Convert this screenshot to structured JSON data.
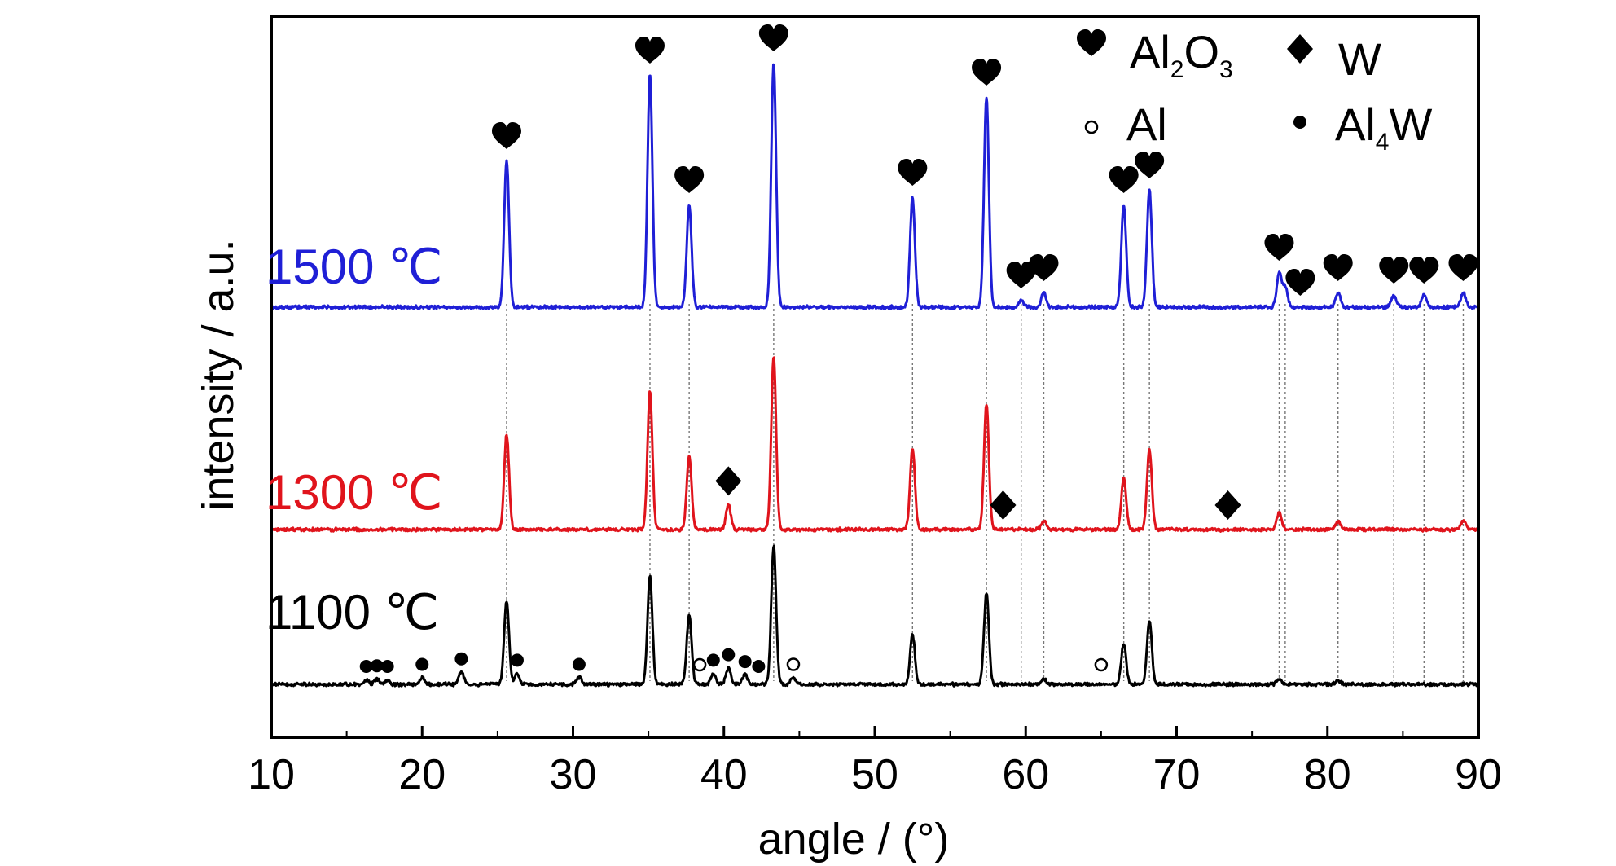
{
  "chart_data": {
    "type": "line",
    "xlabel": "angle / (°)",
    "ylabel": "intensity / a.u.",
    "xlim": [
      10,
      90
    ],
    "xticks": [
      10,
      20,
      30,
      40,
      50,
      60,
      70,
      80,
      90
    ],
    "grid": false,
    "legend_position": "top-right",
    "colors": {
      "1500": "#1f1fd6",
      "1300": "#e0141c",
      "1100": "#000000"
    },
    "legend": [
      {
        "marker": "heart",
        "label": "Al2O3",
        "main": "Al",
        "sub1": "2",
        "mid": "O",
        "sub2": "3"
      },
      {
        "marker": "diamond",
        "label": "W",
        "main": "W"
      },
      {
        "marker": "open-circle",
        "label": "Al",
        "main": "Al"
      },
      {
        "marker": "filled-circle",
        "label": "Al4W",
        "main": "Al",
        "sub1": "4",
        "mid": "W"
      }
    ],
    "reference_lines_x": [
      25.6,
      35.1,
      37.7,
      43.3,
      52.5,
      57.4,
      59.7,
      61.2,
      66.5,
      68.2,
      76.8,
      77.2,
      80.7,
      84.4,
      86.4,
      89.0
    ],
    "series": [
      {
        "name": "1500 ℃",
        "color": "#1f1fd6",
        "peaks": [
          {
            "x": 25.6,
            "y": 0.6
          },
          {
            "x": 35.1,
            "y": 0.95
          },
          {
            "x": 37.7,
            "y": 0.42
          },
          {
            "x": 43.3,
            "y": 1.0
          },
          {
            "x": 52.5,
            "y": 0.45
          },
          {
            "x": 57.4,
            "y": 0.86
          },
          {
            "x": 59.7,
            "y": 0.03
          },
          {
            "x": 61.2,
            "y": 0.06
          },
          {
            "x": 66.5,
            "y": 0.42
          },
          {
            "x": 68.2,
            "y": 0.48
          },
          {
            "x": 76.8,
            "y": 0.14
          },
          {
            "x": 77.2,
            "y": 0.08
          },
          {
            "x": 80.7,
            "y": 0.06
          },
          {
            "x": 84.4,
            "y": 0.05
          },
          {
            "x": 86.4,
            "y": 0.05
          },
          {
            "x": 89.0,
            "y": 0.06
          }
        ],
        "markers": [
          {
            "x": 25.6,
            "type": "heart"
          },
          {
            "x": 35.1,
            "type": "heart"
          },
          {
            "x": 37.7,
            "type": "heart"
          },
          {
            "x": 43.3,
            "type": "heart"
          },
          {
            "x": 52.5,
            "type": "heart"
          },
          {
            "x": 57.4,
            "type": "heart"
          },
          {
            "x": 59.7,
            "type": "heart"
          },
          {
            "x": 61.2,
            "type": "heart"
          },
          {
            "x": 66.5,
            "type": "heart"
          },
          {
            "x": 68.2,
            "type": "heart"
          },
          {
            "x": 76.8,
            "type": "heart"
          },
          {
            "x": 78.2,
            "type": "heart"
          },
          {
            "x": 80.7,
            "type": "heart"
          },
          {
            "x": 84.4,
            "type": "heart"
          },
          {
            "x": 86.4,
            "type": "heart"
          },
          {
            "x": 89.0,
            "type": "heart"
          }
        ]
      },
      {
        "name": "1300 ℃",
        "color": "#e0141c",
        "peaks": [
          {
            "x": 25.6,
            "y": 0.55
          },
          {
            "x": 35.1,
            "y": 0.8
          },
          {
            "x": 37.7,
            "y": 0.43
          },
          {
            "x": 40.3,
            "y": 0.14
          },
          {
            "x": 43.3,
            "y": 1.0
          },
          {
            "x": 52.5,
            "y": 0.47
          },
          {
            "x": 57.4,
            "y": 0.73
          },
          {
            "x": 61.2,
            "y": 0.05
          },
          {
            "x": 66.5,
            "y": 0.3
          },
          {
            "x": 68.2,
            "y": 0.46
          },
          {
            "x": 76.8,
            "y": 0.1
          },
          {
            "x": 80.7,
            "y": 0.05
          },
          {
            "x": 89.0,
            "y": 0.05
          }
        ],
        "markers": [
          {
            "x": 40.3,
            "type": "diamond"
          },
          {
            "x": 58.5,
            "type": "diamond"
          },
          {
            "x": 73.4,
            "type": "diamond"
          }
        ]
      },
      {
        "name": "1100 ℃",
        "color": "#000000",
        "peaks": [
          {
            "x": 16.3,
            "y": 0.03
          },
          {
            "x": 17.0,
            "y": 0.04
          },
          {
            "x": 17.7,
            "y": 0.03
          },
          {
            "x": 20.0,
            "y": 0.05
          },
          {
            "x": 22.6,
            "y": 0.09
          },
          {
            "x": 25.6,
            "y": 0.6
          },
          {
            "x": 26.3,
            "y": 0.08
          },
          {
            "x": 30.4,
            "y": 0.05
          },
          {
            "x": 35.1,
            "y": 0.78
          },
          {
            "x": 37.7,
            "y": 0.5
          },
          {
            "x": 39.3,
            "y": 0.08
          },
          {
            "x": 40.3,
            "y": 0.12
          },
          {
            "x": 41.4,
            "y": 0.07
          },
          {
            "x": 43.3,
            "y": 1.0
          },
          {
            "x": 44.6,
            "y": 0.05
          },
          {
            "x": 52.5,
            "y": 0.36
          },
          {
            "x": 57.4,
            "y": 0.66
          },
          {
            "x": 61.2,
            "y": 0.04
          },
          {
            "x": 66.5,
            "y": 0.3
          },
          {
            "x": 68.2,
            "y": 0.46
          },
          {
            "x": 76.8,
            "y": 0.04
          },
          {
            "x": 80.7,
            "y": 0.03
          }
        ],
        "markers": [
          {
            "x": 16.3,
            "type": "filled-circle"
          },
          {
            "x": 17.0,
            "type": "filled-circle"
          },
          {
            "x": 17.7,
            "type": "filled-circle"
          },
          {
            "x": 20.0,
            "type": "filled-circle"
          },
          {
            "x": 22.6,
            "type": "filled-circle"
          },
          {
            "x": 26.3,
            "type": "filled-circle"
          },
          {
            "x": 30.4,
            "type": "filled-circle"
          },
          {
            "x": 38.4,
            "type": "open-circle"
          },
          {
            "x": 39.3,
            "type": "filled-circle"
          },
          {
            "x": 40.3,
            "type": "filled-circle"
          },
          {
            "x": 41.4,
            "type": "filled-circle"
          },
          {
            "x": 42.3,
            "type": "filled-circle"
          },
          {
            "x": 44.6,
            "type": "open-circle"
          },
          {
            "x": 65.0,
            "type": "open-circle"
          }
        ]
      }
    ]
  }
}
